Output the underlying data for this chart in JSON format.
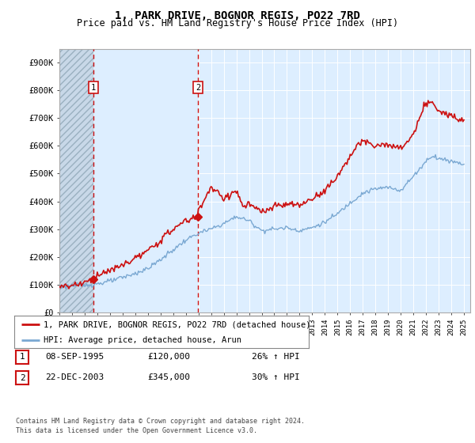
{
  "title": "1, PARK DRIVE, BOGNOR REGIS, PO22 7RD",
  "subtitle": "Price paid vs. HM Land Registry's House Price Index (HPI)",
  "ylabel_ticks": [
    "£0",
    "£100K",
    "£200K",
    "£300K",
    "£400K",
    "£500K",
    "£600K",
    "£700K",
    "£800K",
    "£900K"
  ],
  "ytick_values": [
    0,
    100000,
    200000,
    300000,
    400000,
    500000,
    600000,
    700000,
    800000,
    900000
  ],
  "ylim": [
    0,
    950000
  ],
  "xlim_start": 1993.0,
  "xlim_end": 2025.5,
  "hpi_color": "#7aa8d2",
  "price_color": "#cc1111",
  "hatch_color": "#dce8f0",
  "bg_color": "#ddeeff",
  "sale1_year": 1995.69,
  "sale1_price": 120000,
  "sale2_year": 2003.97,
  "sale2_price": 345000,
  "legend_label1": "1, PARK DRIVE, BOGNOR REGIS, PO22 7RD (detached house)",
  "legend_label2": "HPI: Average price, detached house, Arun",
  "table_entries": [
    {
      "num": "1",
      "date": "08-SEP-1995",
      "price": "£120,000",
      "hpi": "26% ↑ HPI"
    },
    {
      "num": "2",
      "date": "22-DEC-2003",
      "price": "£345,000",
      "hpi": "30% ↑ HPI"
    }
  ],
  "footnote": "Contains HM Land Registry data © Crown copyright and database right 2024.\nThis data is licensed under the Open Government Licence v3.0.",
  "title_fontsize": 10,
  "subtitle_fontsize": 8.5
}
